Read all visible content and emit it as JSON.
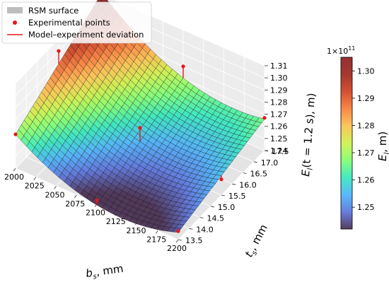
{
  "chart_data": {
    "type": "surface",
    "x_axis": {
      "label": "b_s, mm",
      "label_main": "b",
      "label_sub": "s",
      "label_rest": ", mm",
      "ticks": [
        2000,
        2025,
        2050,
        2075,
        2100,
        2125,
        2150,
        2175,
        2200
      ],
      "range": [
        2000,
        2200
      ]
    },
    "y_axis": {
      "label": "t_s, mm",
      "label_main": "t",
      "label_sub": "s",
      "label_rest": ", mm",
      "ticks": [
        13.5,
        14.0,
        14.5,
        15.0,
        15.5,
        16.0,
        16.5,
        17.0,
        17.5
      ],
      "range": [
        13.5,
        17.5
      ]
    },
    "z_axis": {
      "label": "E_l(t = 1.2 s), m)",
      "label_main": "E",
      "label_sub": "l",
      "label_rest": "(t = 1.2 s), m)",
      "ticks": [
        1.24,
        1.25,
        1.26,
        1.27,
        1.28,
        1.29,
        1.3,
        1.31
      ],
      "range": [
        1.24,
        1.31
      ]
    },
    "colorbar": {
      "label": "E_l, m)",
      "label_main": "E",
      "label_sub": "l",
      "label_rest": ", m)",
      "ticks": [
        1.25,
        1.26,
        1.27,
        1.28,
        1.29,
        1.3
      ],
      "range": [
        1.242,
        1.305
      ],
      "offset_text": "1×10",
      "offset_exp": "11",
      "colormap": "turbo"
    },
    "legend": {
      "position": "top-left",
      "entries": [
        "RSM surface",
        "Experimental points",
        "Model–experiment deviation"
      ]
    },
    "surface_model": {
      "x_range": [
        2000,
        2200
      ],
      "y_range": [
        13.5,
        17.5
      ],
      "corners": {
        "x_min_y_min": 1.268,
        "x_max_y_min": 1.246,
        "x_min_y_max": 1.311,
        "x_max_y_max": 1.266
      },
      "valley_depth": 0.018,
      "valley_center_x": 2115
    },
    "experimental_points": [
      {
        "x": 2000,
        "y": 13.5,
        "z": 1.268
      },
      {
        "x": 2100,
        "y": 13.5,
        "z": 1.243
      },
      {
        "x": 2200,
        "y": 13.5,
        "z": 1.247
      },
      {
        "x": 2000,
        "y": 15.5,
        "z": 1.3
      },
      {
        "x": 2100,
        "y": 15.5,
        "z": 1.266
      },
      {
        "x": 2200,
        "y": 15.5,
        "z": 1.253
      },
      {
        "x": 2100,
        "y": 17.5,
        "z": 1.28
      },
      {
        "x": 2200,
        "y": 17.5,
        "z": 1.267
      }
    ],
    "colors": {
      "point": "#e8161b",
      "deviation_line": "#e8161b",
      "legend_patch": "#bdbdbd",
      "mesh_line": "#1a1a1a"
    },
    "grid": true
  }
}
